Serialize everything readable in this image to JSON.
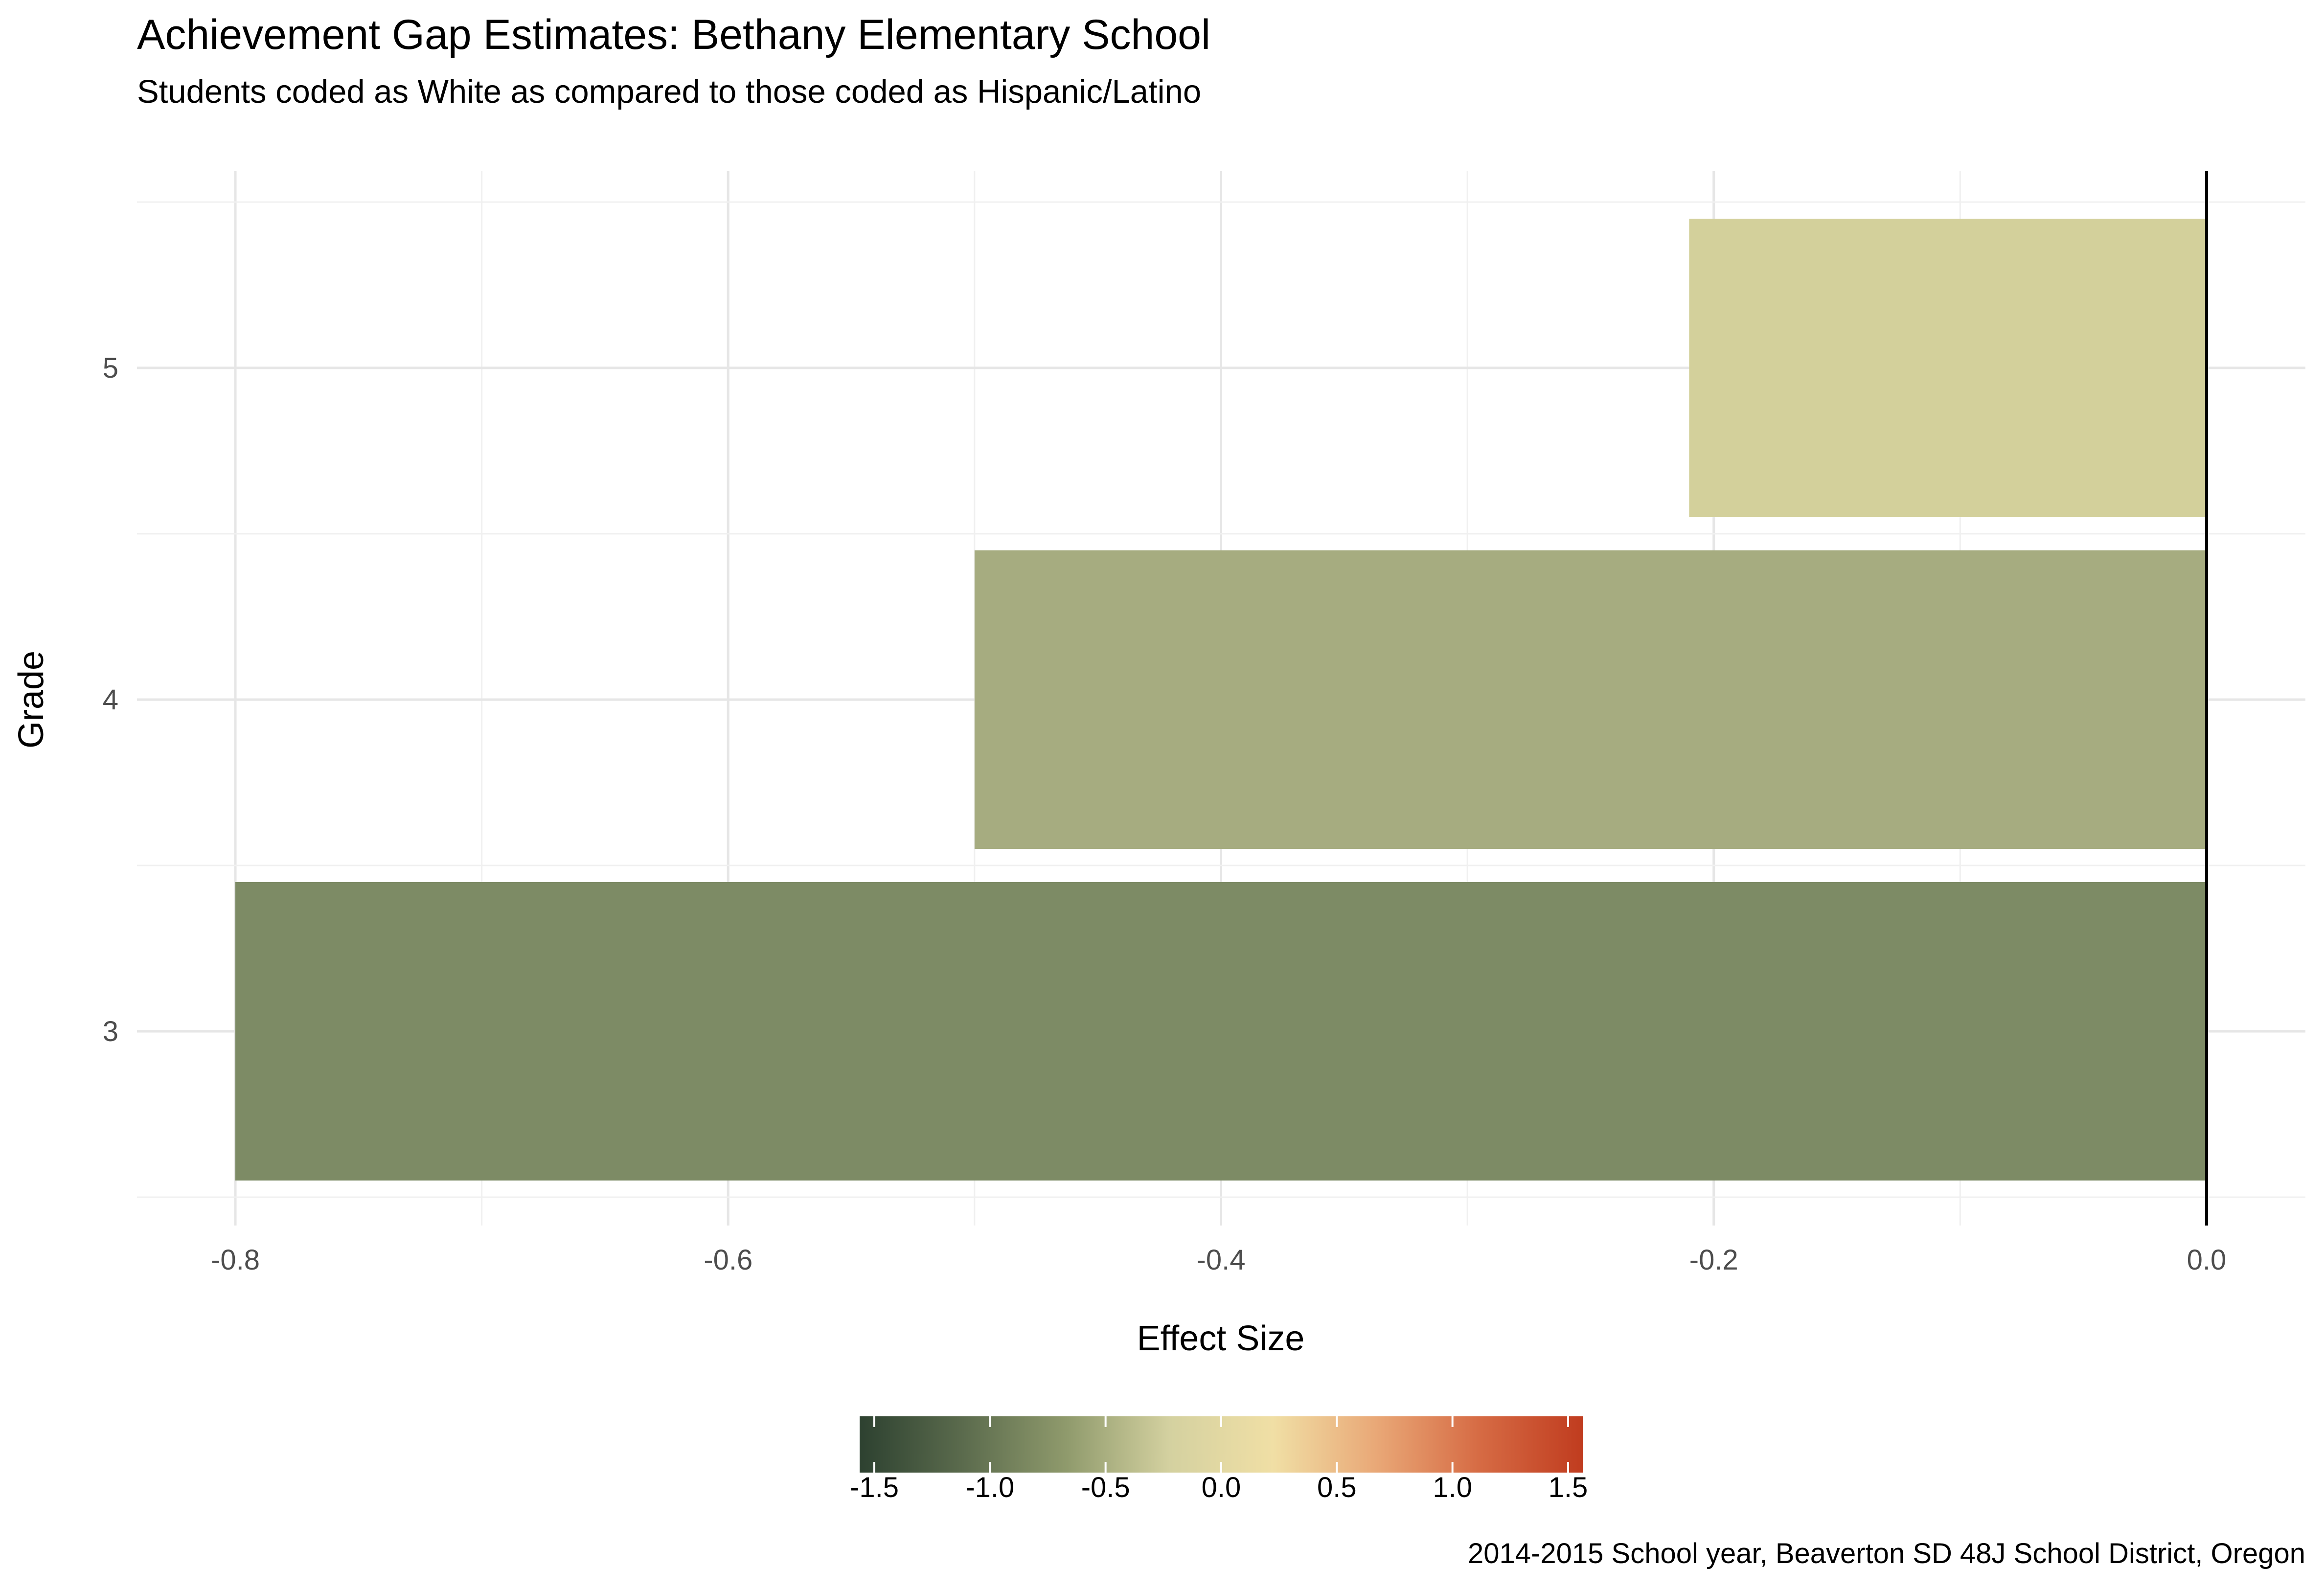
{
  "chart_data": {
    "type": "bar",
    "orientation": "horizontal",
    "title": "Achievement Gap Estimates: Bethany Elementary School",
    "subtitle": "Students coded as White as compared to those coded as Hispanic/Latino",
    "xlabel": "Effect Size",
    "ylabel": "Grade",
    "caption": "2014-2015 School year, Beaverton SD 48J School District, Oregon",
    "categories": [
      "3",
      "4",
      "5"
    ],
    "values": [
      -0.8,
      -0.5,
      -0.21
    ],
    "bar_colors": [
      "#7d8b65",
      "#a6ac80",
      "#d3d09b"
    ],
    "xlim": [
      -0.84,
      0.0
    ],
    "x_ticks": [
      -0.8,
      -0.6,
      -0.4,
      -0.2,
      0.0
    ],
    "x_tick_labels": [
      "-0.8",
      "-0.6",
      "-0.4",
      "-0.2",
      "0.0"
    ],
    "grid": true,
    "legend": {
      "type": "colorbar",
      "placement": "bottom",
      "range": [
        -1.5,
        1.5
      ],
      "ticks": [
        -1.5,
        -1.0,
        -0.5,
        0.0,
        0.5,
        1.0,
        1.5
      ],
      "tick_labels": [
        "-1.5",
        "-1.0",
        "-0.5",
        "0.0",
        "0.5",
        "1.0",
        "1.5"
      ],
      "colors": [
        "#2d4130",
        "#5b6b4d",
        "#8f9a6c",
        "#d4d1a0",
        "#f0dfa5",
        "#e9a877",
        "#d66b44",
        "#c03c1f"
      ]
    }
  }
}
